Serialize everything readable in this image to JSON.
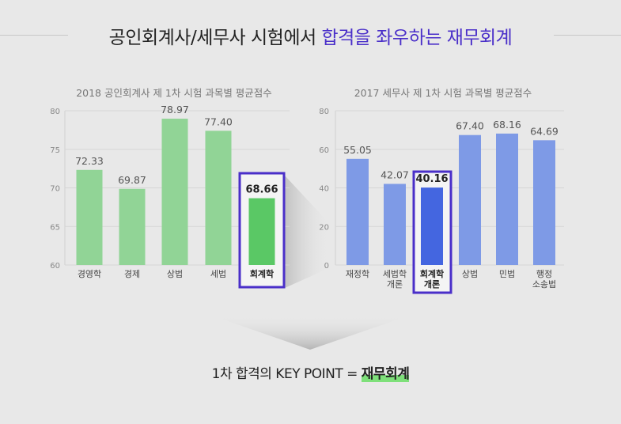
{
  "headline": {
    "part1": "공인회계사/세무사 시험에서 ",
    "part2": "합격을 좌우하는 재무회계"
  },
  "footer": {
    "prefix": "1차 합격의 KEY POINT = ",
    "keyword": "재무회계"
  },
  "chart_data": [
    {
      "type": "bar",
      "title": "2018 공인회계사 제 1차 시험 과목별 평균점수",
      "categories": [
        "경영학",
        "경제",
        "상법",
        "세법",
        "회계학"
      ],
      "values": [
        72.33,
        69.87,
        78.97,
        77.4,
        68.66
      ],
      "value_labels": [
        "72.33",
        "69.87",
        "78.97",
        "77.40",
        "68.66"
      ],
      "ylim": [
        60,
        80
      ],
      "yticks": [
        "60",
        "65",
        "70",
        "75",
        "80"
      ],
      "highlight": "회계학",
      "colors": {
        "bar": "#91d496",
        "highlight": "#5ac865",
        "frame": "#4a2fc9"
      },
      "grid": true
    },
    {
      "type": "bar",
      "title": "2017 세무사 제 1차 시험 과목별 평균점수",
      "categories": [
        "재정학",
        "세법학 개론",
        "회계학 개론",
        "상법",
        "민법",
        "행정 소송법"
      ],
      "category_lines": [
        [
          "재정학"
        ],
        [
          "세법학",
          "개론"
        ],
        [
          "회계학",
          "개론"
        ],
        [
          "상법"
        ],
        [
          "민법"
        ],
        [
          "행정",
          "소송법"
        ]
      ],
      "values": [
        55.05,
        42.07,
        40.16,
        67.4,
        68.16,
        64.69
      ],
      "value_labels": [
        "55.05",
        "42.07",
        "40.16",
        "67.40",
        "68.16",
        "64.69"
      ],
      "ylim": [
        0,
        80
      ],
      "yticks": [
        "0",
        "20",
        "40",
        "60",
        "80"
      ],
      "highlight": "회계학 개론",
      "colors": {
        "bar": "#7e9ae6",
        "highlight": "#4466e0",
        "frame": "#4a2fc9"
      },
      "grid": true
    }
  ]
}
